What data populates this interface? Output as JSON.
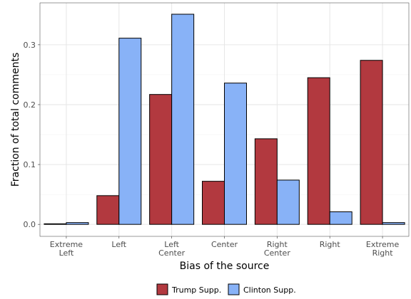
{
  "chart_data": {
    "type": "bar",
    "xlabel": "Bias of the source",
    "ylabel": "Fraction of total comments",
    "categories": [
      [
        "Extreme",
        "Left"
      ],
      [
        "Left"
      ],
      [
        "Left",
        "Center"
      ],
      [
        "Center"
      ],
      [
        "Right",
        "Center"
      ],
      [
        "Right"
      ],
      [
        "Extreme",
        "Right"
      ]
    ],
    "series": [
      {
        "name": "Trump Supp.",
        "color": "#b2393f",
        "values": [
          0.001,
          0.048,
          0.217,
          0.072,
          0.143,
          0.245,
          0.274
        ]
      },
      {
        "name": "Clinton Supp.",
        "color": "#88b2f7",
        "values": [
          0.003,
          0.311,
          0.351,
          0.236,
          0.074,
          0.021,
          0.003
        ]
      }
    ],
    "ylim": [
      -0.02,
      0.37
    ],
    "yticks": [
      0.0,
      0.1,
      0.2,
      0.3
    ],
    "ytick_labels": [
      "0.0",
      "0.1",
      "0.2",
      "0.3"
    ],
    "grid": true,
    "legend_position": "bottom"
  }
}
